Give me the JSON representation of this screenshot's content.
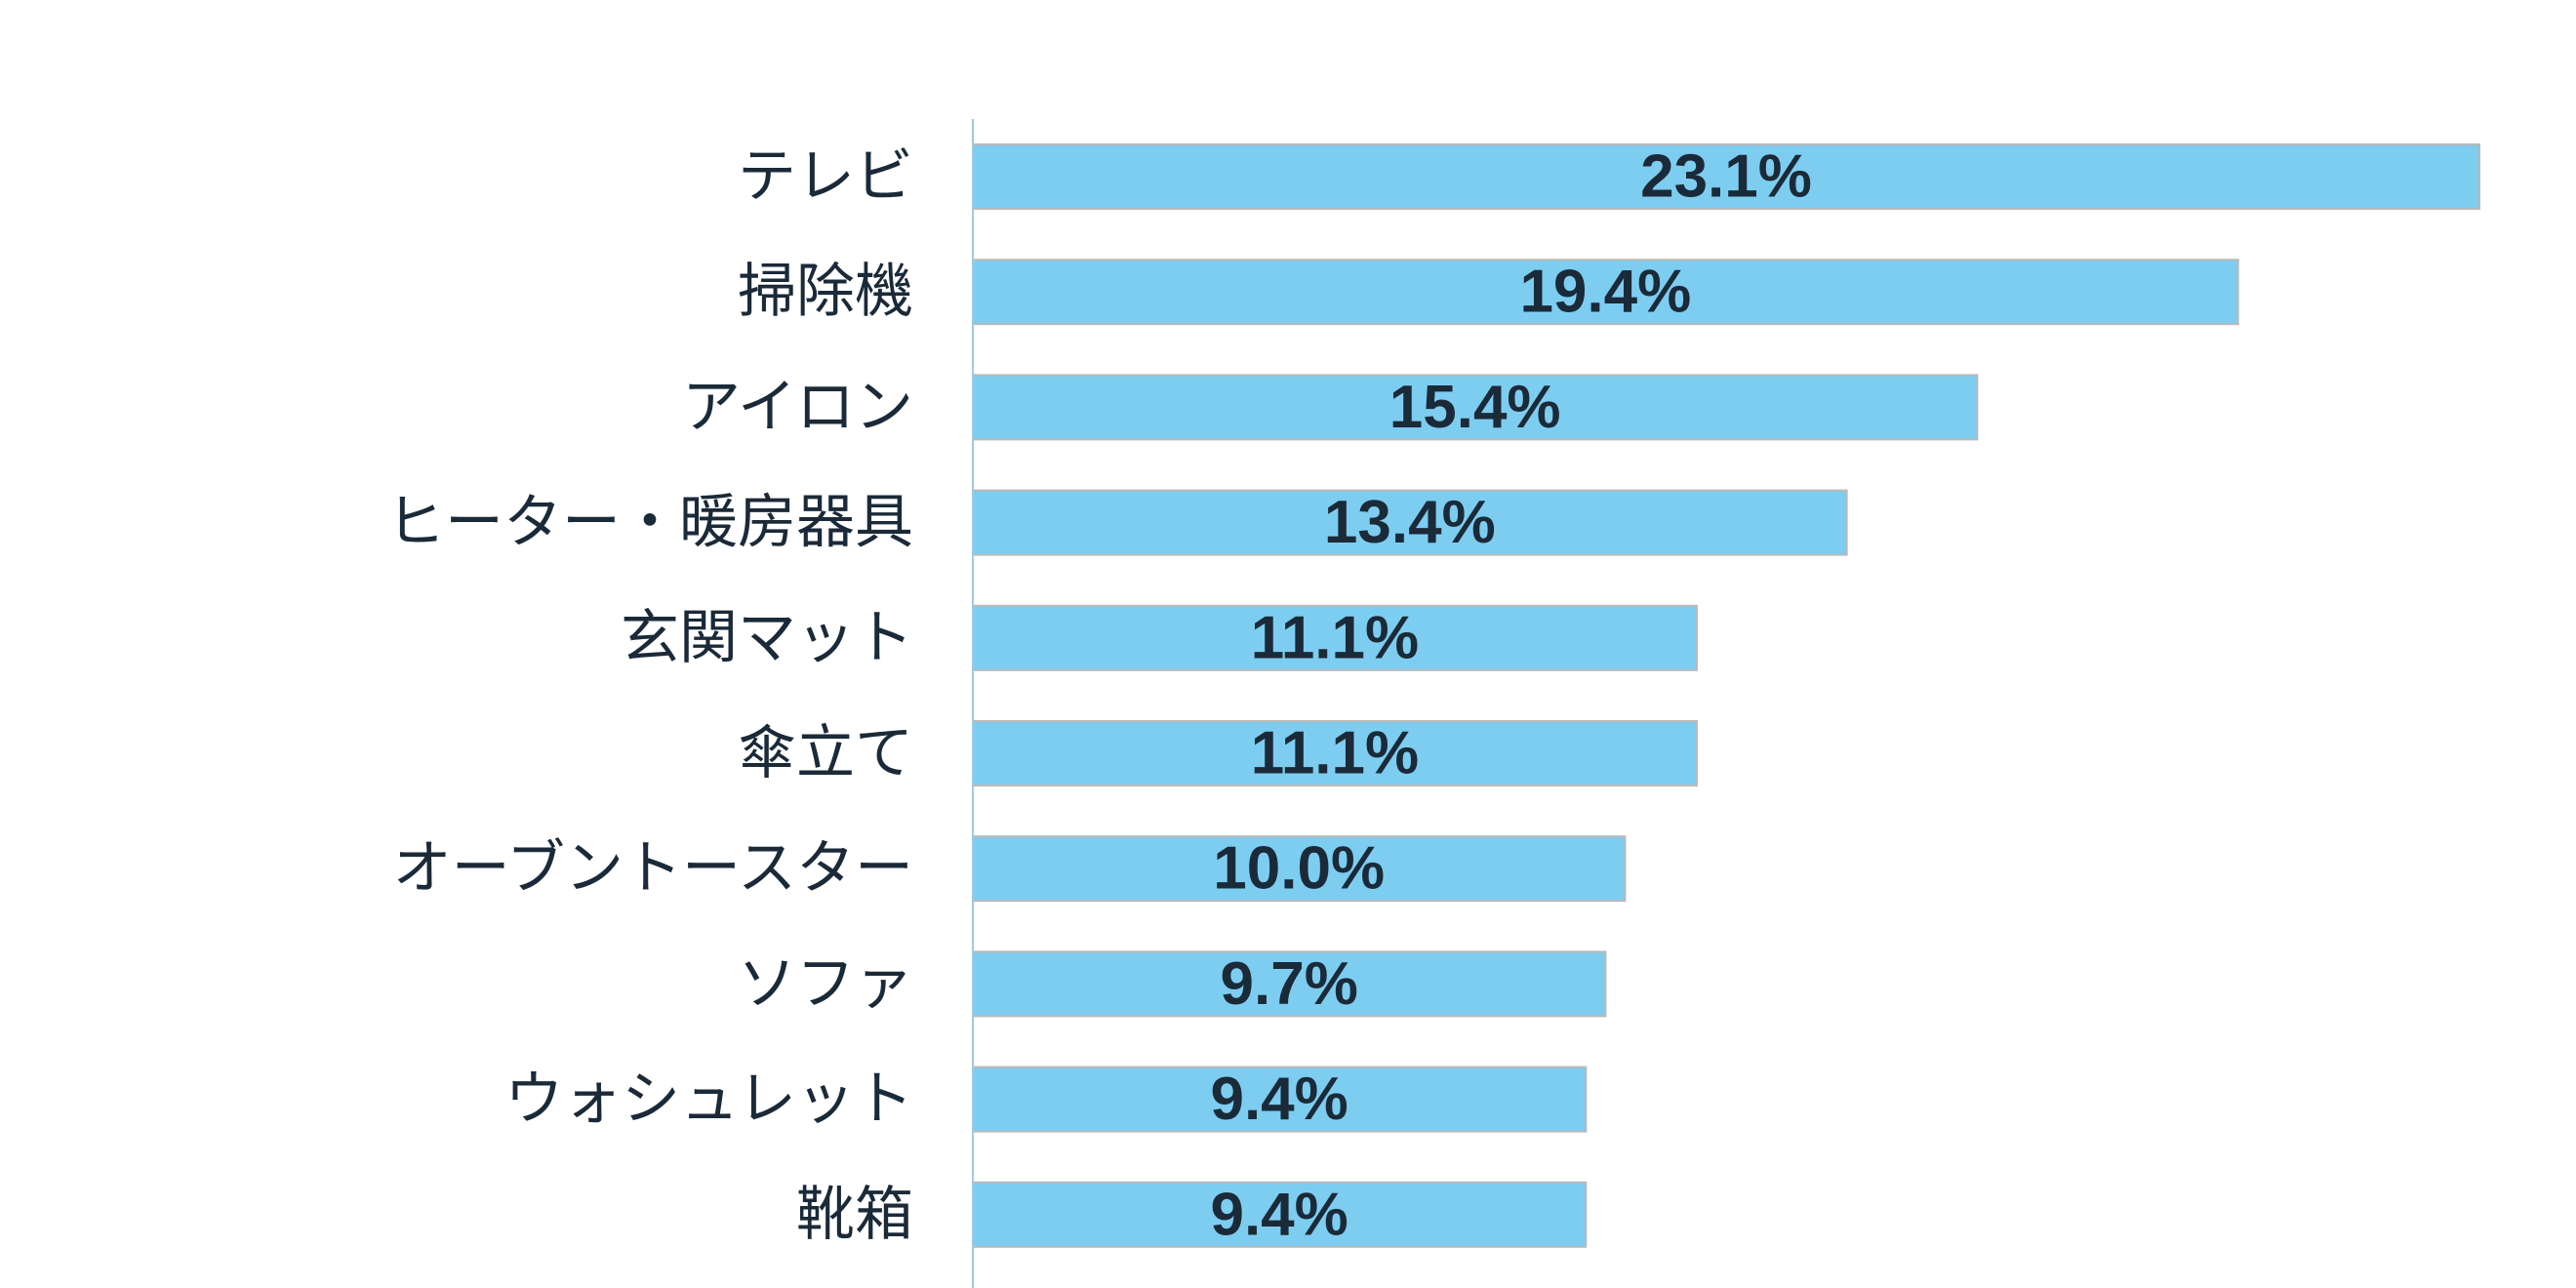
{
  "chart_data": {
    "type": "bar",
    "orientation": "horizontal",
    "title": "",
    "xlabel": "",
    "ylabel": "",
    "xlim": [
      0,
      23.1
    ],
    "grid": false,
    "legend": "none",
    "bar_color": "#7dcdf0",
    "bar_edge_color": "#b9b9b9",
    "axis_color": "#9dcbe0",
    "text_color": "#1b2a38",
    "categories": [
      "テレビ",
      "掃除機",
      "アイロン",
      "ヒーター・暖房器具",
      "玄関マット",
      "傘立て",
      "オーブントースター",
      "ソファ",
      "ウォシュレット",
      "靴箱"
    ],
    "values": [
      23.1,
      19.4,
      15.4,
      13.4,
      11.1,
      11.1,
      10.0,
      9.7,
      9.4,
      9.4
    ],
    "value_labels": [
      "23.1%",
      "19.4%",
      "15.4%",
      "13.4%",
      "11.1%",
      "11.1%",
      "10.0%",
      "9.7%",
      "9.4%",
      "9.4%"
    ]
  }
}
